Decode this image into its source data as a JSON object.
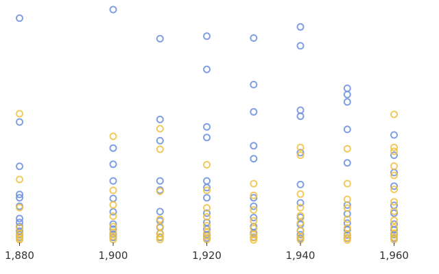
{
  "chart_data": {
    "type": "scatter",
    "title": "",
    "xlabel": "",
    "ylabel": "",
    "grid": false,
    "x_range": [
      1880,
      1960
    ],
    "x_ticks": [
      1880,
      1900,
      1920,
      1940,
      1960
    ],
    "x_tick_labels": [
      "1,880",
      "1,900",
      "1,920",
      "1,940",
      "1,960"
    ],
    "y_range": [
      0,
      100
    ],
    "y_axis_visible": false,
    "colors": {
      "series_a": "#6b8ede",
      "series_b": "#f0c040"
    },
    "marker": "hollow-circle",
    "series": [
      {
        "color_key": "series_a",
        "points": [
          {
            "x": 1880,
            "y": 96.3
          },
          {
            "x": 1880,
            "y": 51.3
          },
          {
            "x": 1880,
            "y": 32.1
          },
          {
            "x": 1880,
            "y": 19.9
          },
          {
            "x": 1880,
            "y": 18.5
          },
          {
            "x": 1880,
            "y": 14.8
          },
          {
            "x": 1880,
            "y": 9.5
          },
          {
            "x": 1880,
            "y": 7.8
          },
          {
            "x": 1880,
            "y": 6.0
          },
          {
            "x": 1880,
            "y": 4.0
          },
          {
            "x": 1880,
            "y": 2.5
          },
          {
            "x": 1880,
            "y": 1.4
          },
          {
            "x": 1900,
            "y": 100.0
          },
          {
            "x": 1900,
            "y": 40.0
          },
          {
            "x": 1900,
            "y": 33.0
          },
          {
            "x": 1900,
            "y": 25.8
          },
          {
            "x": 1900,
            "y": 18.2
          },
          {
            "x": 1900,
            "y": 12.4
          },
          {
            "x": 1900,
            "y": 7.1
          },
          {
            "x": 1900,
            "y": 4.9
          },
          {
            "x": 1900,
            "y": 2.7
          },
          {
            "x": 1900,
            "y": 1.3
          },
          {
            "x": 1910,
            "y": 87.4
          },
          {
            "x": 1910,
            "y": 52.4
          },
          {
            "x": 1910,
            "y": 43.2
          },
          {
            "x": 1910,
            "y": 25.8
          },
          {
            "x": 1910,
            "y": 21.8
          },
          {
            "x": 1910,
            "y": 12.5
          },
          {
            "x": 1910,
            "y": 8.5
          },
          {
            "x": 1910,
            "y": 5.6
          },
          {
            "x": 1910,
            "y": 3.0
          },
          {
            "x": 1910,
            "y": 1.3
          },
          {
            "x": 1920,
            "y": 88.5
          },
          {
            "x": 1920,
            "y": 74.1
          },
          {
            "x": 1920,
            "y": 49.2
          },
          {
            "x": 1920,
            "y": 44.6
          },
          {
            "x": 1920,
            "y": 25.8
          },
          {
            "x": 1920,
            "y": 22.9
          },
          {
            "x": 1920,
            "y": 18.5
          },
          {
            "x": 1920,
            "y": 11.8
          },
          {
            "x": 1920,
            "y": 7.8
          },
          {
            "x": 1920,
            "y": 4.9
          },
          {
            "x": 1920,
            "y": 2.5
          },
          {
            "x": 1920,
            "y": 1.0
          },
          {
            "x": 1930,
            "y": 87.7
          },
          {
            "x": 1930,
            "y": 67.5
          },
          {
            "x": 1930,
            "y": 55.7
          },
          {
            "x": 1930,
            "y": 41.0
          },
          {
            "x": 1930,
            "y": 35.4
          },
          {
            "x": 1930,
            "y": 18.5
          },
          {
            "x": 1930,
            "y": 14.8
          },
          {
            "x": 1930,
            "y": 9.9
          },
          {
            "x": 1930,
            "y": 6.0
          },
          {
            "x": 1930,
            "y": 3.2
          },
          {
            "x": 1930,
            "y": 1.4
          },
          {
            "x": 1940,
            "y": 92.5
          },
          {
            "x": 1940,
            "y": 84.3
          },
          {
            "x": 1940,
            "y": 56.4
          },
          {
            "x": 1940,
            "y": 53.8
          },
          {
            "x": 1940,
            "y": 38.0
          },
          {
            "x": 1940,
            "y": 24.2
          },
          {
            "x": 1940,
            "y": 16.3
          },
          {
            "x": 1940,
            "y": 10.0
          },
          {
            "x": 1940,
            "y": 6.9
          },
          {
            "x": 1940,
            "y": 4.3
          },
          {
            "x": 1940,
            "y": 2.5
          },
          {
            "x": 1940,
            "y": 0.9
          },
          {
            "x": 1950,
            "y": 65.9
          },
          {
            "x": 1950,
            "y": 63.2
          },
          {
            "x": 1950,
            "y": 60.0
          },
          {
            "x": 1950,
            "y": 48.1
          },
          {
            "x": 1950,
            "y": 33.6
          },
          {
            "x": 1950,
            "y": 15.3
          },
          {
            "x": 1950,
            "y": 11.5
          },
          {
            "x": 1950,
            "y": 7.5
          },
          {
            "x": 1950,
            "y": 4.6
          },
          {
            "x": 1950,
            "y": 2.3
          },
          {
            "x": 1950,
            "y": 1.0
          },
          {
            "x": 1960,
            "y": 45.7
          },
          {
            "x": 1960,
            "y": 36.9
          },
          {
            "x": 1960,
            "y": 29.4
          },
          {
            "x": 1960,
            "y": 23.5
          },
          {
            "x": 1960,
            "y": 15.2
          },
          {
            "x": 1960,
            "y": 11.8
          },
          {
            "x": 1960,
            "y": 7.1
          },
          {
            "x": 1960,
            "y": 4.6
          },
          {
            "x": 1960,
            "y": 2.5
          },
          {
            "x": 1960,
            "y": 1.0
          }
        ]
      },
      {
        "color_key": "series_b",
        "points": [
          {
            "x": 1880,
            "y": 54.9
          },
          {
            "x": 1880,
            "y": 26.4
          },
          {
            "x": 1880,
            "y": 14.2
          },
          {
            "x": 1880,
            "y": 5.5
          },
          {
            "x": 1880,
            "y": 3.0
          },
          {
            "x": 1880,
            "y": 1.7
          },
          {
            "x": 1880,
            "y": 0.7
          },
          {
            "x": 1880,
            "y": 0.3
          },
          {
            "x": 1900,
            "y": 45.1
          },
          {
            "x": 1900,
            "y": 21.7
          },
          {
            "x": 1900,
            "y": 15.4
          },
          {
            "x": 1900,
            "y": 10.5
          },
          {
            "x": 1900,
            "y": 6.0
          },
          {
            "x": 1900,
            "y": 3.5
          },
          {
            "x": 1900,
            "y": 1.8
          },
          {
            "x": 1900,
            "y": 0.4
          },
          {
            "x": 1910,
            "y": 48.4
          },
          {
            "x": 1910,
            "y": 39.5
          },
          {
            "x": 1910,
            "y": 21.3
          },
          {
            "x": 1910,
            "y": 9.2
          },
          {
            "x": 1910,
            "y": 6.0
          },
          {
            "x": 1910,
            "y": 3.0
          },
          {
            "x": 1910,
            "y": 1.6
          },
          {
            "x": 1910,
            "y": 0.4
          },
          {
            "x": 1920,
            "y": 32.8
          },
          {
            "x": 1920,
            "y": 21.7
          },
          {
            "x": 1920,
            "y": 14.1
          },
          {
            "x": 1920,
            "y": 10.2
          },
          {
            "x": 1920,
            "y": 6.4
          },
          {
            "x": 1920,
            "y": 3.5
          },
          {
            "x": 1920,
            "y": 1.8
          },
          {
            "x": 1920,
            "y": 0.4
          },
          {
            "x": 1930,
            "y": 24.6
          },
          {
            "x": 1930,
            "y": 19.5
          },
          {
            "x": 1930,
            "y": 13.2
          },
          {
            "x": 1930,
            "y": 8.5
          },
          {
            "x": 1930,
            "y": 5.2
          },
          {
            "x": 1930,
            "y": 2.5
          },
          {
            "x": 1930,
            "y": 1.2
          },
          {
            "x": 1930,
            "y": 0.2
          },
          {
            "x": 1940,
            "y": 40.3
          },
          {
            "x": 1940,
            "y": 36.9
          },
          {
            "x": 1940,
            "y": 20.1
          },
          {
            "x": 1940,
            "y": 14.2
          },
          {
            "x": 1940,
            "y": 10.7
          },
          {
            "x": 1940,
            "y": 7.7
          },
          {
            "x": 1940,
            "y": 4.2
          },
          {
            "x": 1940,
            "y": 1.5
          },
          {
            "x": 1940,
            "y": 0.3
          },
          {
            "x": 1950,
            "y": 39.7
          },
          {
            "x": 1950,
            "y": 24.6
          },
          {
            "x": 1950,
            "y": 17.8
          },
          {
            "x": 1950,
            "y": 14.0
          },
          {
            "x": 1950,
            "y": 9.2
          },
          {
            "x": 1950,
            "y": 5.4
          },
          {
            "x": 1950,
            "y": 2.7
          },
          {
            "x": 1950,
            "y": 1.2
          },
          {
            "x": 1950,
            "y": 0.2
          },
          {
            "x": 1960,
            "y": 54.6
          },
          {
            "x": 1960,
            "y": 40.3
          },
          {
            "x": 1960,
            "y": 38.6
          },
          {
            "x": 1960,
            "y": 32.2
          },
          {
            "x": 1960,
            "y": 28.2
          },
          {
            "x": 1960,
            "y": 22.1
          },
          {
            "x": 1960,
            "y": 16.7
          },
          {
            "x": 1960,
            "y": 12.6
          },
          {
            "x": 1960,
            "y": 8.7
          },
          {
            "x": 1960,
            "y": 5.5
          },
          {
            "x": 1960,
            "y": 3.1
          },
          {
            "x": 1960,
            "y": 1.4
          },
          {
            "x": 1960,
            "y": 0.3
          }
        ]
      }
    ]
  }
}
